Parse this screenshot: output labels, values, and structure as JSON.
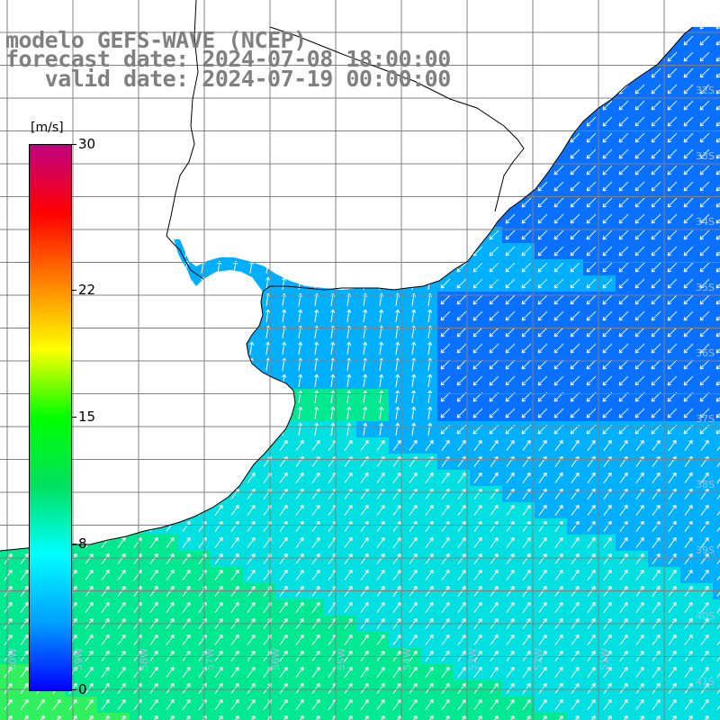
{
  "title": {
    "line1": "modelo GEFS-WAVE (NCEP)",
    "line2": "forecast date: 2024-07-08 18:00:00",
    "line3": "   valid date: 2024-07-19 00:00:00"
  },
  "colorbar": {
    "unit": "[m/s]",
    "ticks": [
      "30",
      "22",
      "15",
      "8",
      "0"
    ],
    "tick_values": [
      30,
      22,
      15,
      8,
      0
    ],
    "min": 0,
    "max": 30,
    "colors": [
      "#0000ff",
      "#00a0ff",
      "#00ffff",
      "#00e060",
      "#00ff00",
      "#ffff00",
      "#ff8000",
      "#ff0000",
      "#c00080"
    ]
  },
  "map": {
    "variable": "wind speed and direction",
    "land_color": "#ffffff",
    "coast_color": "#000000",
    "grid_color": "#808080",
    "lat_labels": [
      "32S",
      "33S",
      "34S",
      "35S",
      "36S",
      "37S",
      "38S",
      "39S",
      "40S",
      "41S"
    ],
    "lon_labels": [
      "60W",
      "59W",
      "58W",
      "57W",
      "56W",
      "55W",
      "54W",
      "53W",
      "52W",
      "51W"
    ]
  }
}
